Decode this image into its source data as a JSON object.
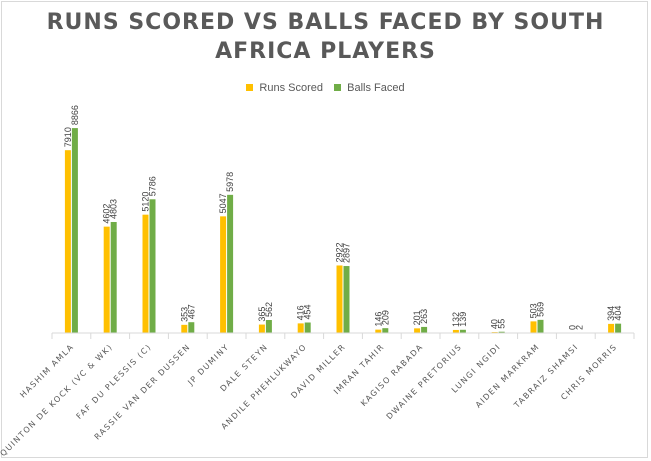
{
  "chart_data": {
    "type": "bar",
    "title": "RUNS SCORED VS BALLS FACED BY SOUTH AFRICA PLAYERS",
    "title_lines": [
      "RUNS SCORED VS BALLS FACED BY SOUTH",
      "AFRICA PLAYERS"
    ],
    "xlabel": "",
    "ylabel": "",
    "ylim": [
      0,
      9000
    ],
    "legend_position": "top",
    "grid": false,
    "categories": [
      "HASHIM AMLA",
      "QUINTON DE KOCK (VC & WK)",
      "FAF DU PLESSIS (C)",
      "RASSIE VAN DER DUSSEN",
      "JP DUMINY",
      "DALE STEYN",
      "ANDILE PHEHLUKWAYO",
      "DAVID MILLER",
      "IMRAN TAHIR",
      "KAGISO RABADA",
      "DWAINE PRETORIUS",
      "LUNGI NGIDI",
      "AIDEN MARKRAM",
      "TABRAIZ SHAMSI",
      "CHRIS MORRIS"
    ],
    "series": [
      {
        "name": "Runs Scored",
        "color": "#ffc000",
        "values": [
          7910,
          4602,
          5120,
          353,
          5047,
          365,
          416,
          2922,
          146,
          201,
          132,
          40,
          503,
          0,
          394
        ]
      },
      {
        "name": "Balls Faced",
        "color": "#70ad47",
        "values": [
          8866,
          4803,
          5786,
          467,
          5978,
          562,
          454,
          2897,
          209,
          263,
          139,
          55,
          569,
          2,
          404
        ]
      }
    ]
  }
}
